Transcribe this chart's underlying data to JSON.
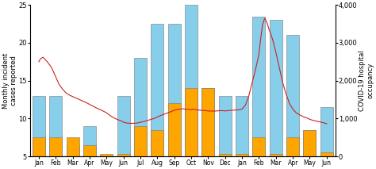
{
  "x_labels": [
    "Jan",
    "Feb",
    "Mar",
    "Apr",
    "May",
    "Jun",
    "Jul",
    "Aug",
    "Sep",
    "Oct",
    "Nov",
    "Dec",
    "Jan",
    "Feb",
    "Mar",
    "Apr",
    "May",
    "Jun"
  ],
  "blue_bars": [
    13,
    13,
    6.5,
    9,
    5.2,
    13,
    18,
    22.5,
    22.5,
    25,
    14,
    13,
    13,
    23.5,
    23,
    21,
    8.5,
    11.5
  ],
  "orange_bars": [
    7.5,
    7.5,
    7.5,
    6.5,
    5.3,
    5.3,
    9,
    8.5,
    12,
    14,
    14,
    5.3,
    5.3,
    7.5,
    5.3,
    7.5,
    8.5,
    5.5
  ],
  "covid_line": [
    [
      0.0,
      2500
    ],
    [
      0.1,
      2580
    ],
    [
      0.25,
      2620
    ],
    [
      0.5,
      2500
    ],
    [
      0.75,
      2350
    ],
    [
      1.0,
      2100
    ],
    [
      1.2,
      1900
    ],
    [
      1.4,
      1780
    ],
    [
      1.6,
      1680
    ],
    [
      1.8,
      1620
    ],
    [
      2.0,
      1580
    ],
    [
      2.2,
      1540
    ],
    [
      2.5,
      1480
    ],
    [
      2.8,
      1420
    ],
    [
      3.1,
      1350
    ],
    [
      3.4,
      1280
    ],
    [
      3.7,
      1220
    ],
    [
      4.0,
      1150
    ],
    [
      4.3,
      1050
    ],
    [
      4.6,
      980
    ],
    [
      4.9,
      930
    ],
    [
      5.0,
      900
    ],
    [
      5.2,
      880
    ],
    [
      5.5,
      870
    ],
    [
      5.8,
      880
    ],
    [
      6.0,
      900
    ],
    [
      6.2,
      920
    ],
    [
      6.5,
      960
    ],
    [
      6.8,
      1000
    ],
    [
      7.0,
      1040
    ],
    [
      7.2,
      1080
    ],
    [
      7.5,
      1130
    ],
    [
      7.8,
      1180
    ],
    [
      8.0,
      1220
    ],
    [
      8.2,
      1240
    ],
    [
      8.4,
      1250
    ],
    [
      8.5,
      1260
    ],
    [
      8.6,
      1250
    ],
    [
      8.7,
      1240
    ],
    [
      8.8,
      1250
    ],
    [
      8.9,
      1240
    ],
    [
      9.0,
      1230
    ],
    [
      9.1,
      1250
    ],
    [
      9.2,
      1240
    ],
    [
      9.3,
      1230
    ],
    [
      9.5,
      1220
    ],
    [
      9.8,
      1210
    ],
    [
      10.0,
      1200
    ],
    [
      10.3,
      1195
    ],
    [
      10.5,
      1200
    ],
    [
      10.8,
      1210
    ],
    [
      11.0,
      1200
    ],
    [
      11.2,
      1210
    ],
    [
      11.5,
      1220
    ],
    [
      11.8,
      1230
    ],
    [
      12.0,
      1250
    ],
    [
      12.2,
      1350
    ],
    [
      12.4,
      1600
    ],
    [
      12.6,
      1950
    ],
    [
      12.8,
      2300
    ],
    [
      13.0,
      2700
    ],
    [
      13.1,
      3100
    ],
    [
      13.2,
      3450
    ],
    [
      13.3,
      3600
    ],
    [
      13.35,
      3650
    ],
    [
      13.4,
      3600
    ],
    [
      13.5,
      3500
    ],
    [
      13.6,
      3350
    ],
    [
      13.8,
      3100
    ],
    [
      14.0,
      2750
    ],
    [
      14.2,
      2350
    ],
    [
      14.4,
      1950
    ],
    [
      14.6,
      1650
    ],
    [
      14.8,
      1400
    ],
    [
      15.0,
      1250
    ],
    [
      15.2,
      1150
    ],
    [
      15.4,
      1100
    ],
    [
      15.6,
      1050
    ],
    [
      15.8,
      1020
    ],
    [
      16.0,
      980
    ],
    [
      16.2,
      950
    ],
    [
      16.5,
      920
    ],
    [
      16.8,
      890
    ],
    [
      17.0,
      860
    ]
  ],
  "ylabel_left": "Monthly incident\ncases reported",
  "ylabel_right": "COVID-19 hospital\noccupancy",
  "ylim_left": [
    5,
    25
  ],
  "ylim_right": [
    0,
    4000
  ],
  "yticks_left": [
    5,
    10,
    15,
    20,
    25
  ],
  "yticks_right": [
    0,
    1000,
    2000,
    3000,
    4000
  ],
  "ytick_labels_right": [
    "0",
    "1,000",
    "2,000",
    "3,000",
    "4,000"
  ],
  "bar_color_blue": "#87CEEB",
  "bar_color_orange": "#FFA500",
  "line_color": "#CC2222",
  "background_color": "#ffffff",
  "bar_width": 0.75,
  "bar_bottom": 5,
  "figsize": [
    4.74,
    2.13
  ],
  "dpi": 100
}
